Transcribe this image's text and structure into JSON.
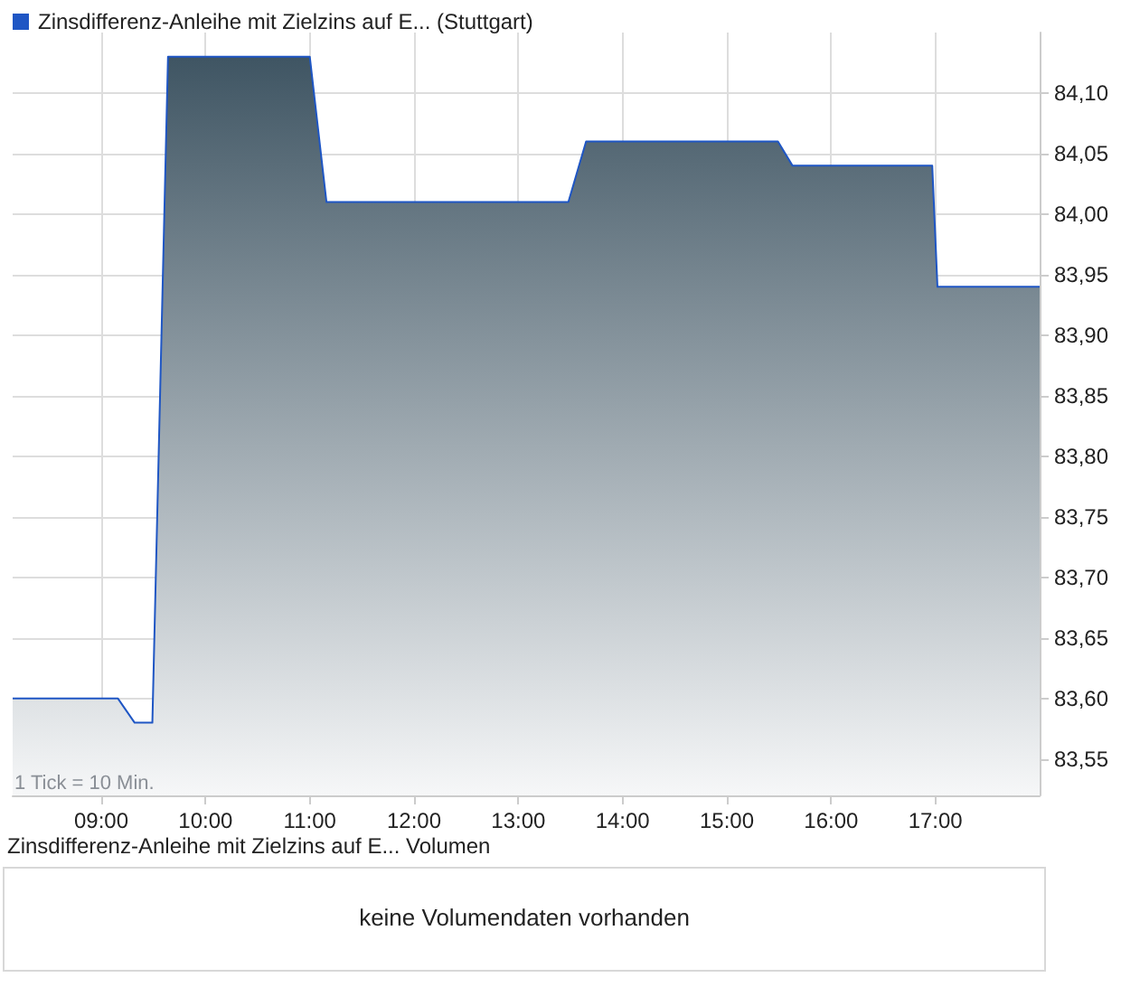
{
  "chart_data": {
    "type": "area",
    "x": [
      8.15,
      9.16,
      9.32,
      9.49,
      9.64,
      11.0,
      11.16,
      13.48,
      13.65,
      15.49,
      15.63,
      16.97,
      17.02,
      18.0
    ],
    "series": [
      {
        "name": "Zinsdifferenz-Anleihe mit Zielzins auf E... (Stuttgart)",
        "color": "#1f56c4",
        "values": [
          83.6,
          83.6,
          83.58,
          83.58,
          84.13,
          84.13,
          84.01,
          84.01,
          84.06,
          84.06,
          84.04,
          84.04,
          83.94,
          83.94
        ]
      }
    ],
    "xlim": [
      8.15,
      18.0
    ],
    "xticks": [
      {
        "value": 9,
        "label": "09:00"
      },
      {
        "value": 10,
        "label": "10:00"
      },
      {
        "value": 11,
        "label": "11:00"
      },
      {
        "value": 12,
        "label": "12:00"
      },
      {
        "value": 13,
        "label": "13:00"
      },
      {
        "value": 14,
        "label": "14:00"
      },
      {
        "value": 15,
        "label": "15:00"
      },
      {
        "value": 16,
        "label": "16:00"
      },
      {
        "value": 17,
        "label": "17:00"
      }
    ],
    "ylim": [
      83.52,
      84.15
    ],
    "yticks": [
      {
        "value": 83.55,
        "label": "83,55"
      },
      {
        "value": 83.6,
        "label": "83,60"
      },
      {
        "value": 83.65,
        "label": "83,65"
      },
      {
        "value": 83.7,
        "label": "83,70"
      },
      {
        "value": 83.75,
        "label": "83,75"
      },
      {
        "value": 83.8,
        "label": "83,80"
      },
      {
        "value": 83.85,
        "label": "83,85"
      },
      {
        "value": 83.9,
        "label": "83,90"
      },
      {
        "value": 83.95,
        "label": "83,95"
      },
      {
        "value": 84.0,
        "label": "84,00"
      },
      {
        "value": 84.05,
        "label": "84,05"
      },
      {
        "value": 84.1,
        "label": "84,10"
      }
    ],
    "grid": true,
    "legend": "top left",
    "marker": "none",
    "line_style": "solid",
    "annotations": [
      "1 Tick = 10 Min.",
      "Zinsdifferenz-Anleihe mit Zielzins auf E... Volumen",
      "keine Volumendaten vorhanden"
    ]
  }
}
